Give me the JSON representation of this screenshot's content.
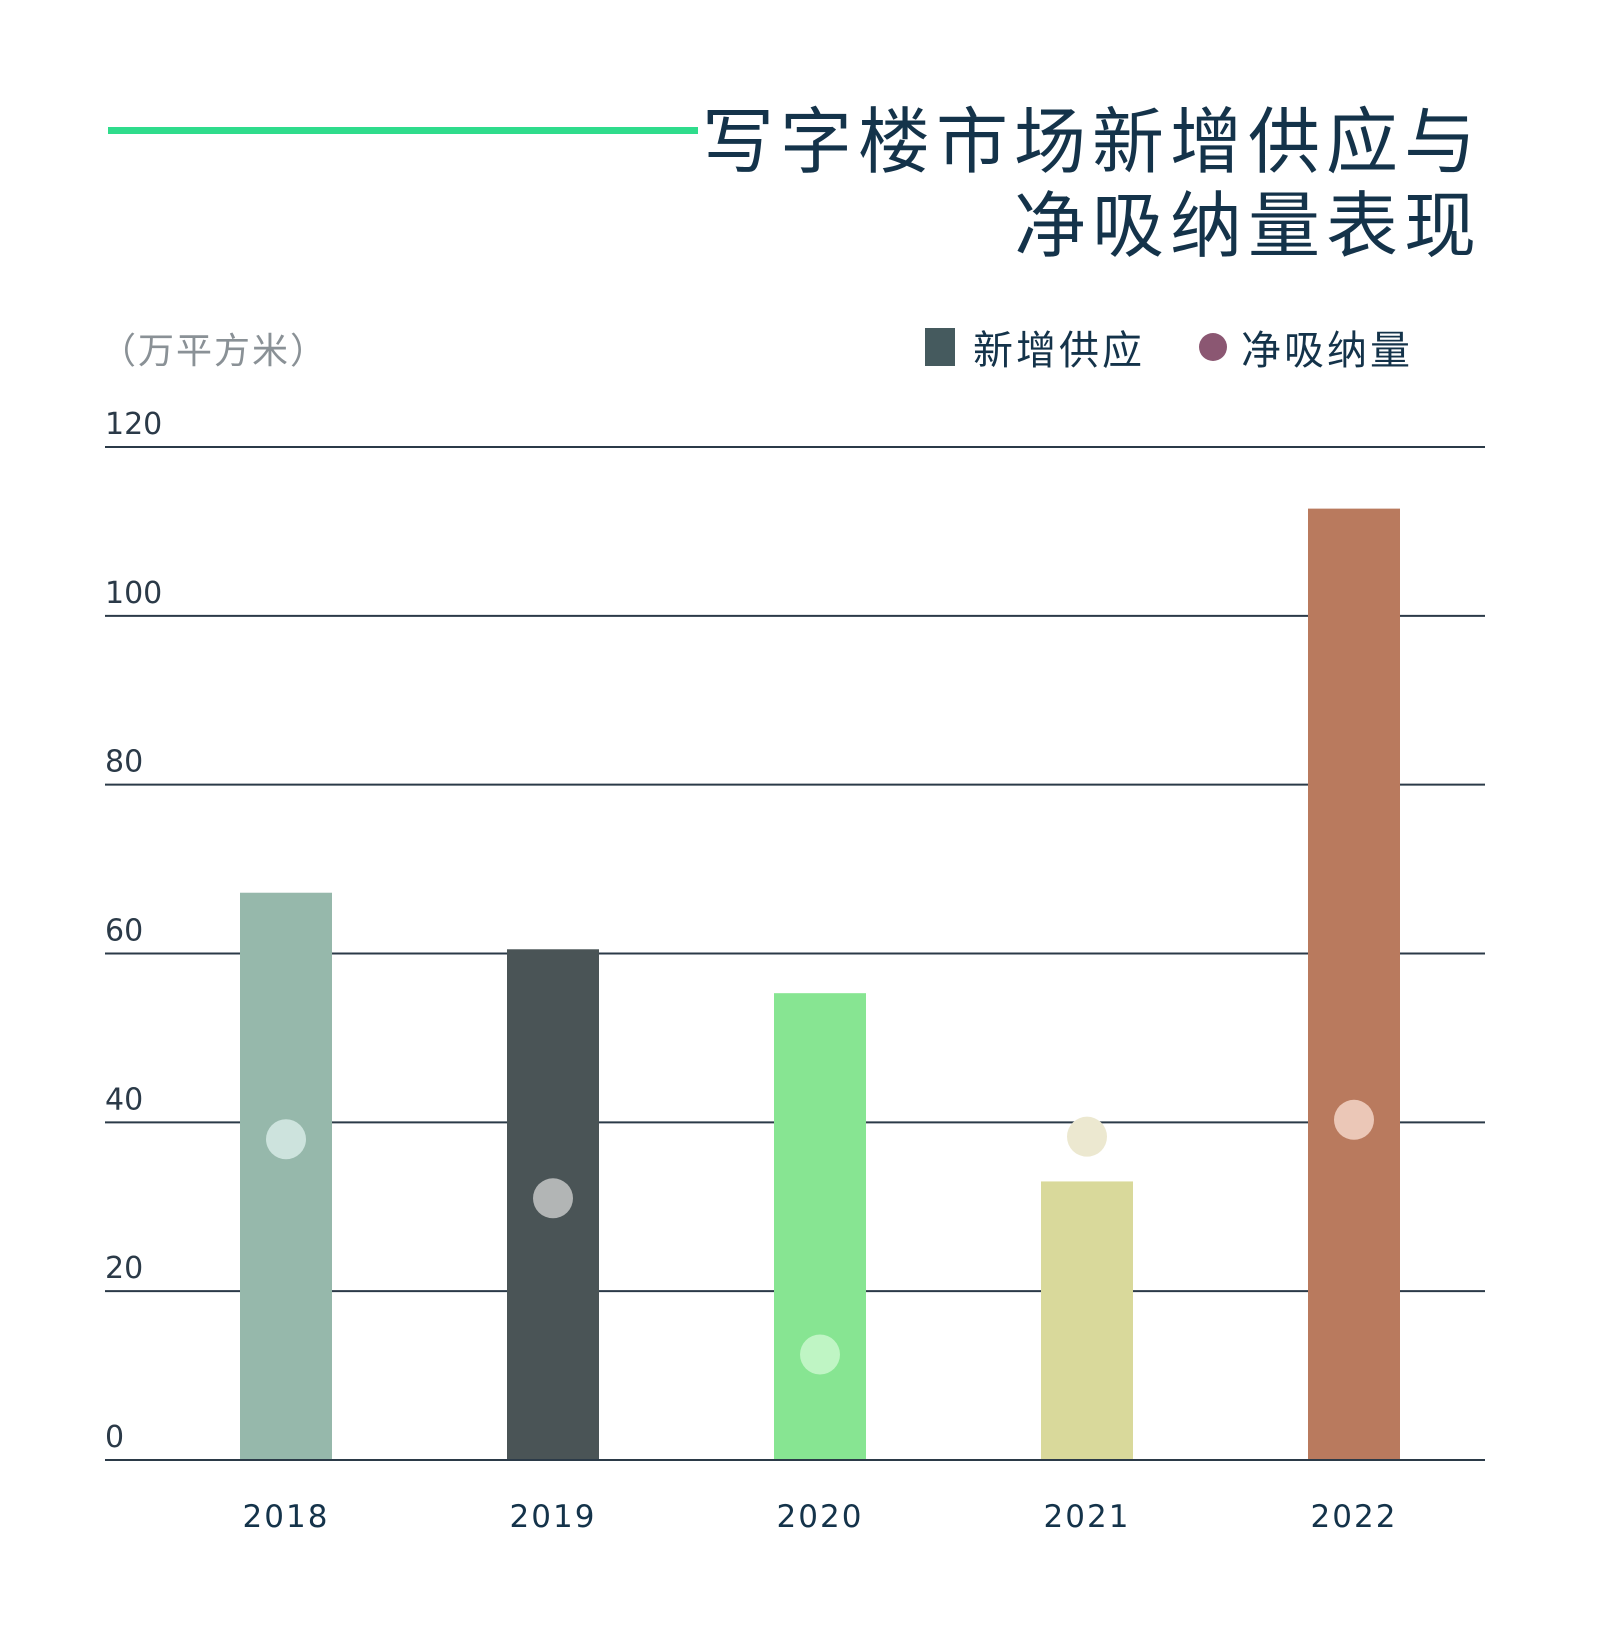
{
  "header": {
    "title_line1": "写字楼市场新增供应与",
    "title_line2": "净吸纳量表现",
    "unit_label": "（万平方米）"
  },
  "colors": {
    "accent": "#2fdc8c",
    "text": "#14334a",
    "gridline": "#2b3a48",
    "legend_supply": "#455a5e",
    "legend_absorption": "#8b5772"
  },
  "chart_data": {
    "type": "bar",
    "categories": [
      "2018",
      "2019",
      "2020",
      "2021",
      "2022"
    ],
    "series": [
      {
        "name": "新增供应",
        "type": "bar",
        "values": [
          67.2,
          60.5,
          55.3,
          33.0,
          112.7
        ],
        "colors": [
          "#96b8ab",
          "#4a5456",
          "#87e592",
          "#d9d99b",
          "#b97a5e"
        ]
      },
      {
        "name": "净吸纳量",
        "type": "scatter",
        "values": [
          38.0,
          31.0,
          12.5,
          38.3,
          40.3
        ],
        "colors": [
          "#cde3dd",
          "#b2b5b5",
          "#bff5c4",
          "#ece8d0",
          "#ebc7b7"
        ]
      }
    ],
    "yticks": [
      "0",
      "20",
      "40",
      "60",
      "80",
      "100",
      "120"
    ],
    "ylim": [
      0,
      120
    ],
    "ylabel": "（万平方米）",
    "title": "写字楼市场新增供应与净吸纳量表现",
    "legend": [
      "新增供应",
      "净吸纳量"
    ],
    "legend_position": "top-right",
    "grid": true
  }
}
